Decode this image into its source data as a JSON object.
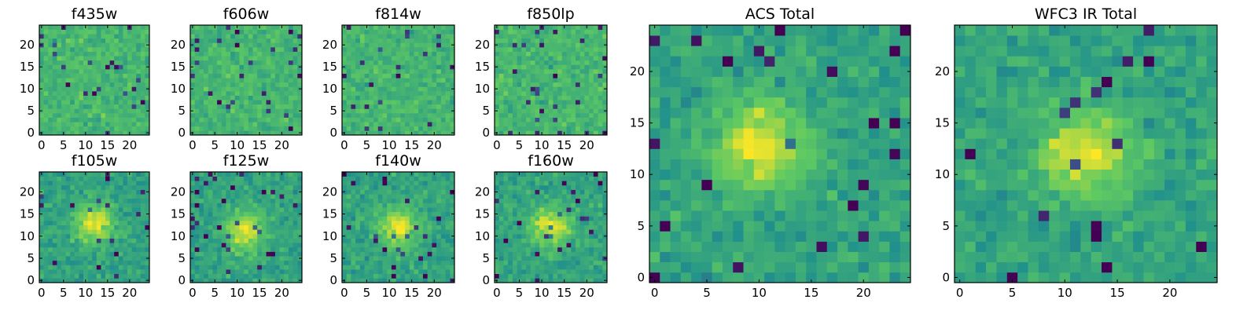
{
  "colors": {
    "colormap": "viridis",
    "palette": [
      "#440154",
      "#3b528b",
      "#21918c",
      "#5ec962",
      "#fde725"
    ]
  },
  "chart_data": [
    {
      "type": "heatmap",
      "title": "f435w",
      "ticks": [
        "0",
        "5",
        "10",
        "15",
        "20"
      ],
      "xlim": [
        0,
        25
      ],
      "ylim": [
        0,
        25
      ],
      "pattern": "noise",
      "seed": 11
    },
    {
      "type": "heatmap",
      "title": "f606w",
      "ticks": [
        "0",
        "5",
        "10",
        "15",
        "20"
      ],
      "xlim": [
        0,
        25
      ],
      "ylim": [
        0,
        25
      ],
      "pattern": "noise",
      "seed": 23
    },
    {
      "type": "heatmap",
      "title": "f814w",
      "ticks": [
        "0",
        "5",
        "10",
        "15",
        "20"
      ],
      "xlim": [
        0,
        25
      ],
      "ylim": [
        0,
        25
      ],
      "pattern": "noise",
      "seed": 37
    },
    {
      "type": "heatmap",
      "title": "f850lp",
      "ticks": [
        "0",
        "5",
        "10",
        "15",
        "20"
      ],
      "xlim": [
        0,
        25
      ],
      "ylim": [
        0,
        25
      ],
      "pattern": "noise",
      "seed": 41
    },
    {
      "type": "heatmap",
      "title": "f105w",
      "ticks": [
        "0",
        "5",
        "10",
        "15",
        "20"
      ],
      "xlim": [
        0,
        25
      ],
      "ylim": [
        0,
        25
      ],
      "pattern": "source",
      "source_center": [
        12,
        13
      ],
      "seed": 53
    },
    {
      "type": "heatmap",
      "title": "f125w",
      "ticks": [
        "0",
        "5",
        "10",
        "15",
        "20"
      ],
      "xlim": [
        0,
        25
      ],
      "ylim": [
        0,
        25
      ],
      "pattern": "source",
      "source_center": [
        12,
        11
      ],
      "seed": 67
    },
    {
      "type": "heatmap",
      "title": "f140w",
      "ticks": [
        "0",
        "5",
        "10",
        "15",
        "20"
      ],
      "xlim": [
        0,
        25
      ],
      "ylim": [
        0,
        25
      ],
      "pattern": "source",
      "source_center": [
        12,
        12
      ],
      "seed": 71
    },
    {
      "type": "heatmap",
      "title": "f160w",
      "ticks": [
        "0",
        "5",
        "10",
        "15",
        "20"
      ],
      "xlim": [
        0,
        25
      ],
      "ylim": [
        0,
        25
      ],
      "pattern": "source",
      "source_center": [
        12,
        12
      ],
      "seed": 89
    },
    {
      "type": "heatmap",
      "title": "ACS Total",
      "ticks": [
        "0",
        "5",
        "10",
        "15",
        "20"
      ],
      "xlim": [
        0,
        25
      ],
      "ylim": [
        0,
        25
      ],
      "pattern": "source",
      "source_center": [
        10,
        13
      ],
      "seed": 97
    },
    {
      "type": "heatmap",
      "title": "WFC3 IR Total",
      "ticks": [
        "0",
        "5",
        "10",
        "15",
        "20"
      ],
      "xlim": [
        0,
        25
      ],
      "ylim": [
        0,
        25
      ],
      "pattern": "source",
      "source_center": [
        12,
        12
      ],
      "seed": 131
    }
  ]
}
